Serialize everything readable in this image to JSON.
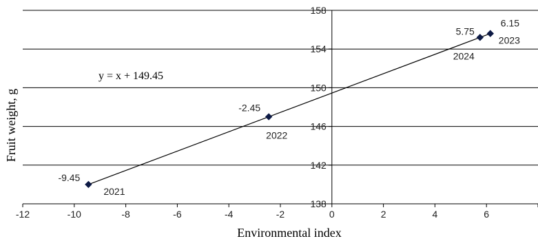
{
  "chart_data": {
    "type": "scatter",
    "xlabel": "Environmental index",
    "ylabel": "Fruit weight, g",
    "xlim": [
      -12,
      8
    ],
    "ylim": [
      138,
      158
    ],
    "xticks": [
      -12,
      -10,
      -8,
      -6,
      -4,
      -2,
      0,
      2,
      4,
      6,
      8
    ],
    "yticks": [
      138,
      142,
      146,
      150,
      154,
      158
    ],
    "grid": "horizontal",
    "equation": "y = x + 149.45",
    "points": [
      {
        "x": -9.45,
        "y": 140.0,
        "value_label": "-9.45",
        "year_label": "2021"
      },
      {
        "x": -2.45,
        "y": 147.0,
        "value_label": "-2.45",
        "year_label": "2022"
      },
      {
        "x": 6.15,
        "y": 155.6,
        "value_label": "6.15",
        "year_label": "2023"
      },
      {
        "x": 5.75,
        "y": 155.2,
        "value_label": "5.75",
        "year_label": "2024"
      }
    ],
    "trendline": {
      "slope": 1,
      "intercept": 149.45,
      "x_range": [
        -9.45,
        6.15
      ]
    },
    "marker_color": "#0d1a45",
    "line_color": "#000000",
    "grid_color": "#000000"
  }
}
